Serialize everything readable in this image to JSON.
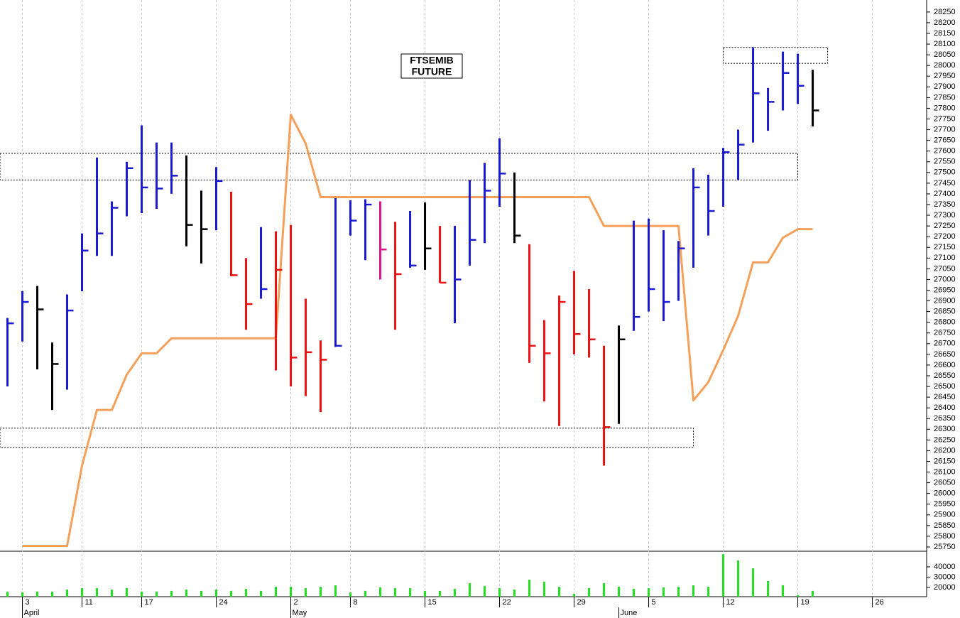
{
  "chart_data": {
    "type": "ohlc",
    "title": [
      "FTSEMIB",
      "FUTURE"
    ],
    "xlim": [
      -0.5,
      61.64
    ],
    "ylim": [
      25730,
      28306
    ],
    "yticks": [
      25750,
      25800,
      25850,
      25900,
      25950,
      26000,
      26050,
      26100,
      26150,
      26200,
      26250,
      26300,
      26350,
      26400,
      26450,
      26500,
      26550,
      26600,
      26650,
      26700,
      26750,
      26800,
      26850,
      26900,
      26950,
      27000,
      27050,
      27100,
      27150,
      27200,
      27250,
      27300,
      27350,
      27400,
      27450,
      27500,
      27550,
      27600,
      27650,
      27700,
      27750,
      27800,
      27850,
      27900,
      27950,
      28000,
      28050,
      28100,
      28150,
      28200,
      28250
    ],
    "xticks": [
      {
        "value": 1,
        "label": "3"
      },
      {
        "value": 5,
        "label": "11"
      },
      {
        "value": 9,
        "label": "17"
      },
      {
        "value": 14,
        "label": "24"
      },
      {
        "value": 19,
        "label": "2"
      },
      {
        "value": 23,
        "label": "8"
      },
      {
        "value": 28,
        "label": "15"
      },
      {
        "value": 33,
        "label": "22"
      },
      {
        "value": 38,
        "label": "29"
      },
      {
        "value": 43,
        "label": "5"
      },
      {
        "value": 48,
        "label": "12"
      },
      {
        "value": 53,
        "label": "19"
      },
      {
        "value": 58,
        "label": "26"
      }
    ],
    "month_ticks": [
      {
        "value": 1,
        "label": "April"
      },
      {
        "value": 19,
        "label": "May"
      },
      {
        "value": 41,
        "label": "June"
      }
    ],
    "high": [
      26820,
      26945,
      26970,
      26705,
      26930,
      27215,
      27570,
      27365,
      27550,
      27720,
      27640,
      27640,
      27580,
      27415,
      27525,
      27410,
      27100,
      27245,
      27225,
      27255,
      26910,
      26715,
      27380,
      27370,
      27375,
      27365,
      27270,
      27320,
      27360,
      27250,
      27250,
      27465,
      27545,
      27660,
      27500,
      27165,
      26810,
      26925,
      27040,
      26955,
      26690,
      26785,
      27275,
      27285,
      27230,
      27180,
      27520,
      27490,
      27615,
      27700,
      28085,
      27895,
      28065,
      28055,
      27980
    ],
    "low": [
      26500,
      26710,
      26580,
      26390,
      26485,
      26945,
      27110,
      27110,
      27295,
      27310,
      27330,
      27400,
      27155,
      27075,
      27230,
      27015,
      26765,
      26910,
      26575,
      26500,
      26455,
      26380,
      26685,
      27205,
      27090,
      27000,
      26765,
      27055,
      27045,
      26985,
      26795,
      27065,
      27170,
      27340,
      27170,
      26610,
      26430,
      26315,
      26650,
      26635,
      26130,
      26325,
      26760,
      26850,
      26805,
      26900,
      27055,
      27205,
      27340,
      27465,
      27640,
      27695,
      27790,
      27820,
      27715
    ],
    "close": [
      26795,
      26895,
      26860,
      26605,
      26855,
      27135,
      27215,
      27335,
      27520,
      27430,
      27425,
      27485,
      27255,
      27235,
      27460,
      27020,
      26885,
      26955,
      27045,
      26635,
      26660,
      26625,
      26690,
      27275,
      27350,
      27140,
      27025,
      27065,
      27145,
      26985,
      27000,
      27185,
      27415,
      27495,
      27205,
      26690,
      26655,
      26895,
      26745,
      26720,
      26310,
      26720,
      26825,
      26955,
      26895,
      27145,
      27430,
      27320,
      27595,
      27630,
      27870,
      27830,
      27965,
      27905,
      27790
    ],
    "bar_colors": [
      "#1a1ad2",
      "#1a1ad2",
      "#000000",
      "#000000",
      "#1a1ad2",
      "#1a1ad2",
      "#1a1ad2",
      "#1a1ad2",
      "#1a1ad2",
      "#1a1ad2",
      "#1a1ad2",
      "#1a1ad2",
      "#000000",
      "#000000",
      "#1a1ad2",
      "#ee1111",
      "#ee1111",
      "#1a1ad2",
      "#ee1111",
      "#ee1111",
      "#ee1111",
      "#ee1111",
      "#1a1ad2",
      "#1a1ad2",
      "#1a1ad2",
      "#e0148c",
      "#ee1111",
      "#1a1ad2",
      "#000000",
      "#ee1111",
      "#1a1ad2",
      "#1a1ad2",
      "#1a1ad2",
      "#1a1ad2",
      "#000000",
      "#ee1111",
      "#ee1111",
      "#ee1111",
      "#ee1111",
      "#ee1111",
      "#ee1111",
      "#000000",
      "#1a1ad2",
      "#1a1ad2",
      "#1a1ad2",
      "#1a1ad2",
      "#1a1ad2",
      "#1a1ad2",
      "#1a1ad2",
      "#1a1ad2",
      "#1a1ad2",
      "#1a1ad2",
      "#1a1ad2",
      "#1a1ad2",
      "#000000"
    ],
    "overlay": {
      "color": "#f5a05a",
      "values": [
        null,
        25755,
        25755,
        25755,
        25755,
        26130,
        26390,
        26390,
        26555,
        26655,
        26655,
        26725,
        26725,
        26725,
        26725,
        26725,
        26725,
        26725,
        26725,
        27770,
        27635,
        27385,
        27385,
        27385,
        27385,
        27385,
        27385,
        27385,
        27385,
        27385,
        27385,
        27385,
        27385,
        27385,
        27385,
        27385,
        27385,
        27385,
        27385,
        27385,
        27250,
        27250,
        27250,
        27250,
        27250,
        27250,
        26435,
        26520,
        26670,
        26830,
        27080,
        27080,
        27195,
        27235,
        27235
      ]
    },
    "zones": [
      {
        "xlim": [
          -0.5,
          53
        ],
        "ylim": [
          27465,
          27590
        ]
      },
      {
        "xlim": [
          -0.5,
          46
        ],
        "ylim": [
          26215,
          26305
        ]
      },
      {
        "xlim": [
          48,
          55
        ],
        "ylim": [
          28010,
          28085
        ]
      }
    ],
    "volume": {
      "color": "#22e022",
      "ylim": [
        11000,
        54500
      ],
      "yticks": [
        20000,
        30000,
        40000
      ],
      "values": [
        15900,
        15200,
        15900,
        15900,
        17900,
        19300,
        19300,
        17900,
        19300,
        15900,
        15900,
        16600,
        17900,
        16600,
        17900,
        16600,
        18600,
        16600,
        20700,
        20700,
        19300,
        20700,
        22100,
        15200,
        16600,
        20000,
        19300,
        19300,
        16600,
        16600,
        18600,
        24100,
        21400,
        19300,
        17900,
        27600,
        25500,
        20700,
        13800,
        19300,
        24100,
        20700,
        18600,
        19300,
        20000,
        20700,
        22100,
        20700,
        52400,
        46200,
        38600,
        26200,
        22100,
        12400,
        16600
      ]
    }
  }
}
